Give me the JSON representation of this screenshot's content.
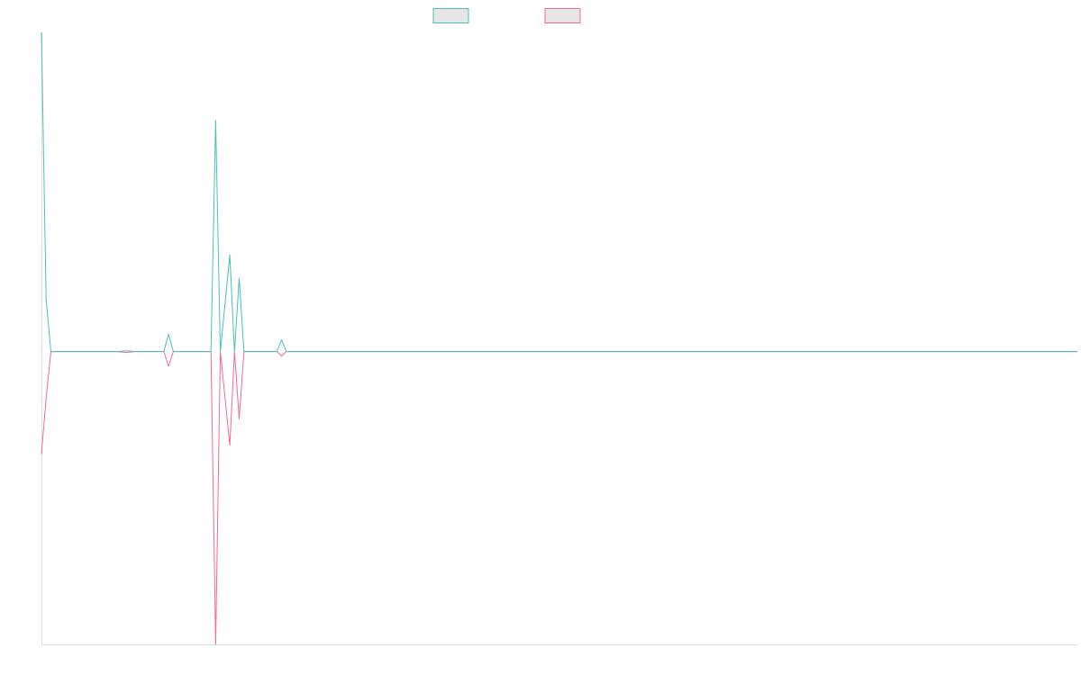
{
  "chart_data": {
    "type": "line",
    "title": "",
    "xlabel": "",
    "ylabel": "",
    "x_range": [
      0,
      220
    ],
    "y_range": [
      -1,
      1.09
    ],
    "grid": false,
    "legend": {
      "position": "top-center",
      "entries": [
        "",
        ""
      ]
    },
    "colors": {
      "series_a": "#4bbfb6",
      "series_b": "#f06a92",
      "legend_fill": "#e6e6e6",
      "axis": "#dddddd"
    },
    "series": [
      {
        "color": "#4bbfb6",
        "points": [
          [
            0,
            1.09
          ],
          [
            1,
            0.18
          ],
          [
            2,
            0
          ],
          [
            16,
            0
          ],
          [
            18,
            0.003
          ],
          [
            20,
            0
          ],
          [
            26,
            0
          ],
          [
            27,
            0.06
          ],
          [
            28,
            0
          ],
          [
            36,
            0
          ],
          [
            37,
            0.79
          ],
          [
            38,
            0
          ],
          [
            40,
            0.33
          ],
          [
            41,
            0
          ],
          [
            42,
            0.25
          ],
          [
            43,
            0
          ],
          [
            50,
            0
          ],
          [
            51,
            0.04
          ],
          [
            52,
            0
          ],
          [
            220,
            0
          ]
        ]
      },
      {
        "color": "#f06a92",
        "points": [
          [
            0,
            -0.35
          ],
          [
            1,
            -0.16
          ],
          [
            2,
            0
          ],
          [
            16,
            0
          ],
          [
            18,
            -0.003
          ],
          [
            20,
            0
          ],
          [
            26,
            0
          ],
          [
            27,
            -0.05
          ],
          [
            28,
            0
          ],
          [
            36,
            0
          ],
          [
            37,
            -1.0
          ],
          [
            38,
            0
          ],
          [
            40,
            -0.32
          ],
          [
            41,
            0
          ],
          [
            42,
            -0.23
          ],
          [
            43,
            0
          ],
          [
            50,
            0
          ],
          [
            51,
            -0.015
          ],
          [
            52,
            0
          ],
          [
            220,
            0
          ]
        ]
      }
    ]
  }
}
